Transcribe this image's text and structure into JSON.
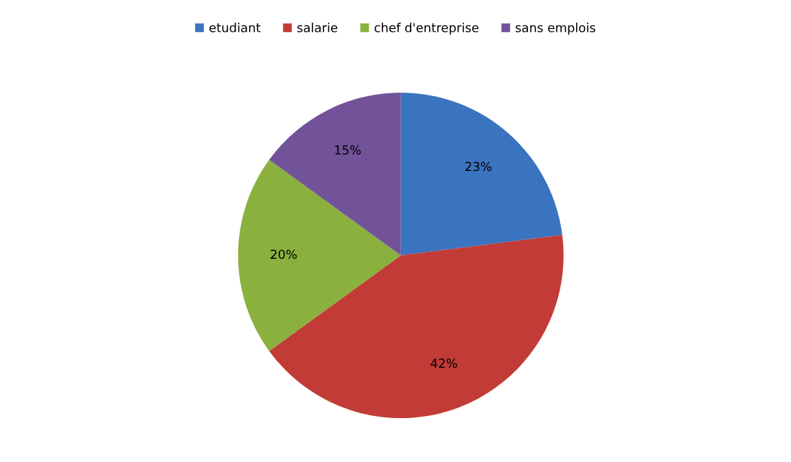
{
  "chart_data": {
    "type": "pie",
    "categories": [
      "etudiant",
      "salarie",
      "chef d'entreprise",
      "sans emplois"
    ],
    "values": [
      23,
      42,
      20,
      15
    ],
    "colors": [
      "#3a74c0",
      "#c23b36",
      "#8ab03e",
      "#72539a"
    ],
    "value_labels": [
      "23%",
      "42%",
      "20%",
      "15%"
    ],
    "legend": "top"
  }
}
